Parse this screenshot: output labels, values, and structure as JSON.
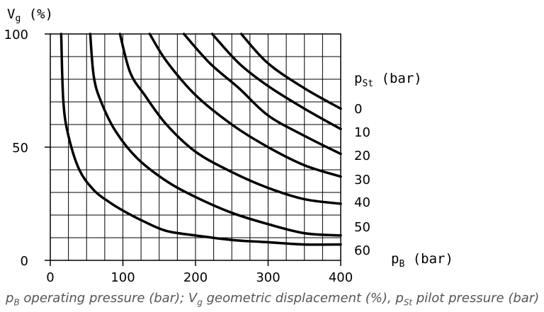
{
  "chart_data": {
    "type": "line",
    "ylabel_parts": {
      "main": "V",
      "sub": "g",
      "rest": " (%)"
    },
    "xlabel_parts": {
      "main": "p",
      "sub": "B",
      "rest": " (bar)"
    },
    "legend_title_parts": {
      "main": "p",
      "sub": "St",
      "rest": " (bar)"
    },
    "xlim": [
      0,
      400
    ],
    "ylim": [
      0,
      100
    ],
    "x_ticks": [
      "0",
      "100",
      "200",
      "300",
      "400"
    ],
    "y_ticks": [
      "0",
      "50",
      "100"
    ],
    "grid": true,
    "line_color": "#000000",
    "series": [
      {
        "name": "0",
        "points": [
          [
            263,
            100
          ],
          [
            300,
            87
          ],
          [
            350,
            76
          ],
          [
            400,
            67
          ]
        ]
      },
      {
        "name": "10",
        "points": [
          [
            223,
            100
          ],
          [
            260,
            87
          ],
          [
            300,
            77
          ],
          [
            350,
            67
          ],
          [
            400,
            58
          ]
        ]
      },
      {
        "name": "20",
        "points": [
          [
            184,
            100
          ],
          [
            220,
            87
          ],
          [
            260,
            76
          ],
          [
            300,
            64
          ],
          [
            350,
            55
          ],
          [
            400,
            47
          ]
        ]
      },
      {
        "name": "30",
        "points": [
          [
            137,
            100
          ],
          [
            160,
            88
          ],
          [
            200,
            73
          ],
          [
            250,
            60
          ],
          [
            300,
            50
          ],
          [
            350,
            42
          ],
          [
            400,
            37
          ]
        ]
      },
      {
        "name": "40",
        "points": [
          [
            96,
            100
          ],
          [
            110,
            83
          ],
          [
            130,
            73
          ],
          [
            160,
            60
          ],
          [
            200,
            48
          ],
          [
            250,
            39
          ],
          [
            300,
            32
          ],
          [
            350,
            27
          ],
          [
            400,
            25
          ]
        ]
      },
      {
        "name": "50",
        "points": [
          [
            55,
            100
          ],
          [
            60,
            81
          ],
          [
            70,
            70
          ],
          [
            90,
            57
          ],
          [
            120,
            45
          ],
          [
            160,
            35
          ],
          [
            200,
            28
          ],
          [
            250,
            21
          ],
          [
            300,
            16
          ],
          [
            350,
            12
          ],
          [
            400,
            11
          ]
        ]
      },
      {
        "name": "60",
        "points": [
          [
            15,
            100
          ],
          [
            18,
            70
          ],
          [
            25,
            55
          ],
          [
            40,
            40
          ],
          [
            60,
            31
          ],
          [
            80,
            26
          ],
          [
            100,
            22
          ],
          [
            130,
            17
          ],
          [
            160,
            13
          ],
          [
            200,
            11
          ],
          [
            250,
            9
          ],
          [
            300,
            8
          ],
          [
            350,
            7
          ],
          [
            400,
            7
          ]
        ]
      }
    ]
  },
  "caption": {
    "p1": "p",
    "p1_sub": "B",
    "t1": " operating pressure (bar); V",
    "t1_sub": "g",
    "t2": " geometric displacement (%), p",
    "t2_sub": "St",
    "t3": " pilot pressure (bar)"
  }
}
